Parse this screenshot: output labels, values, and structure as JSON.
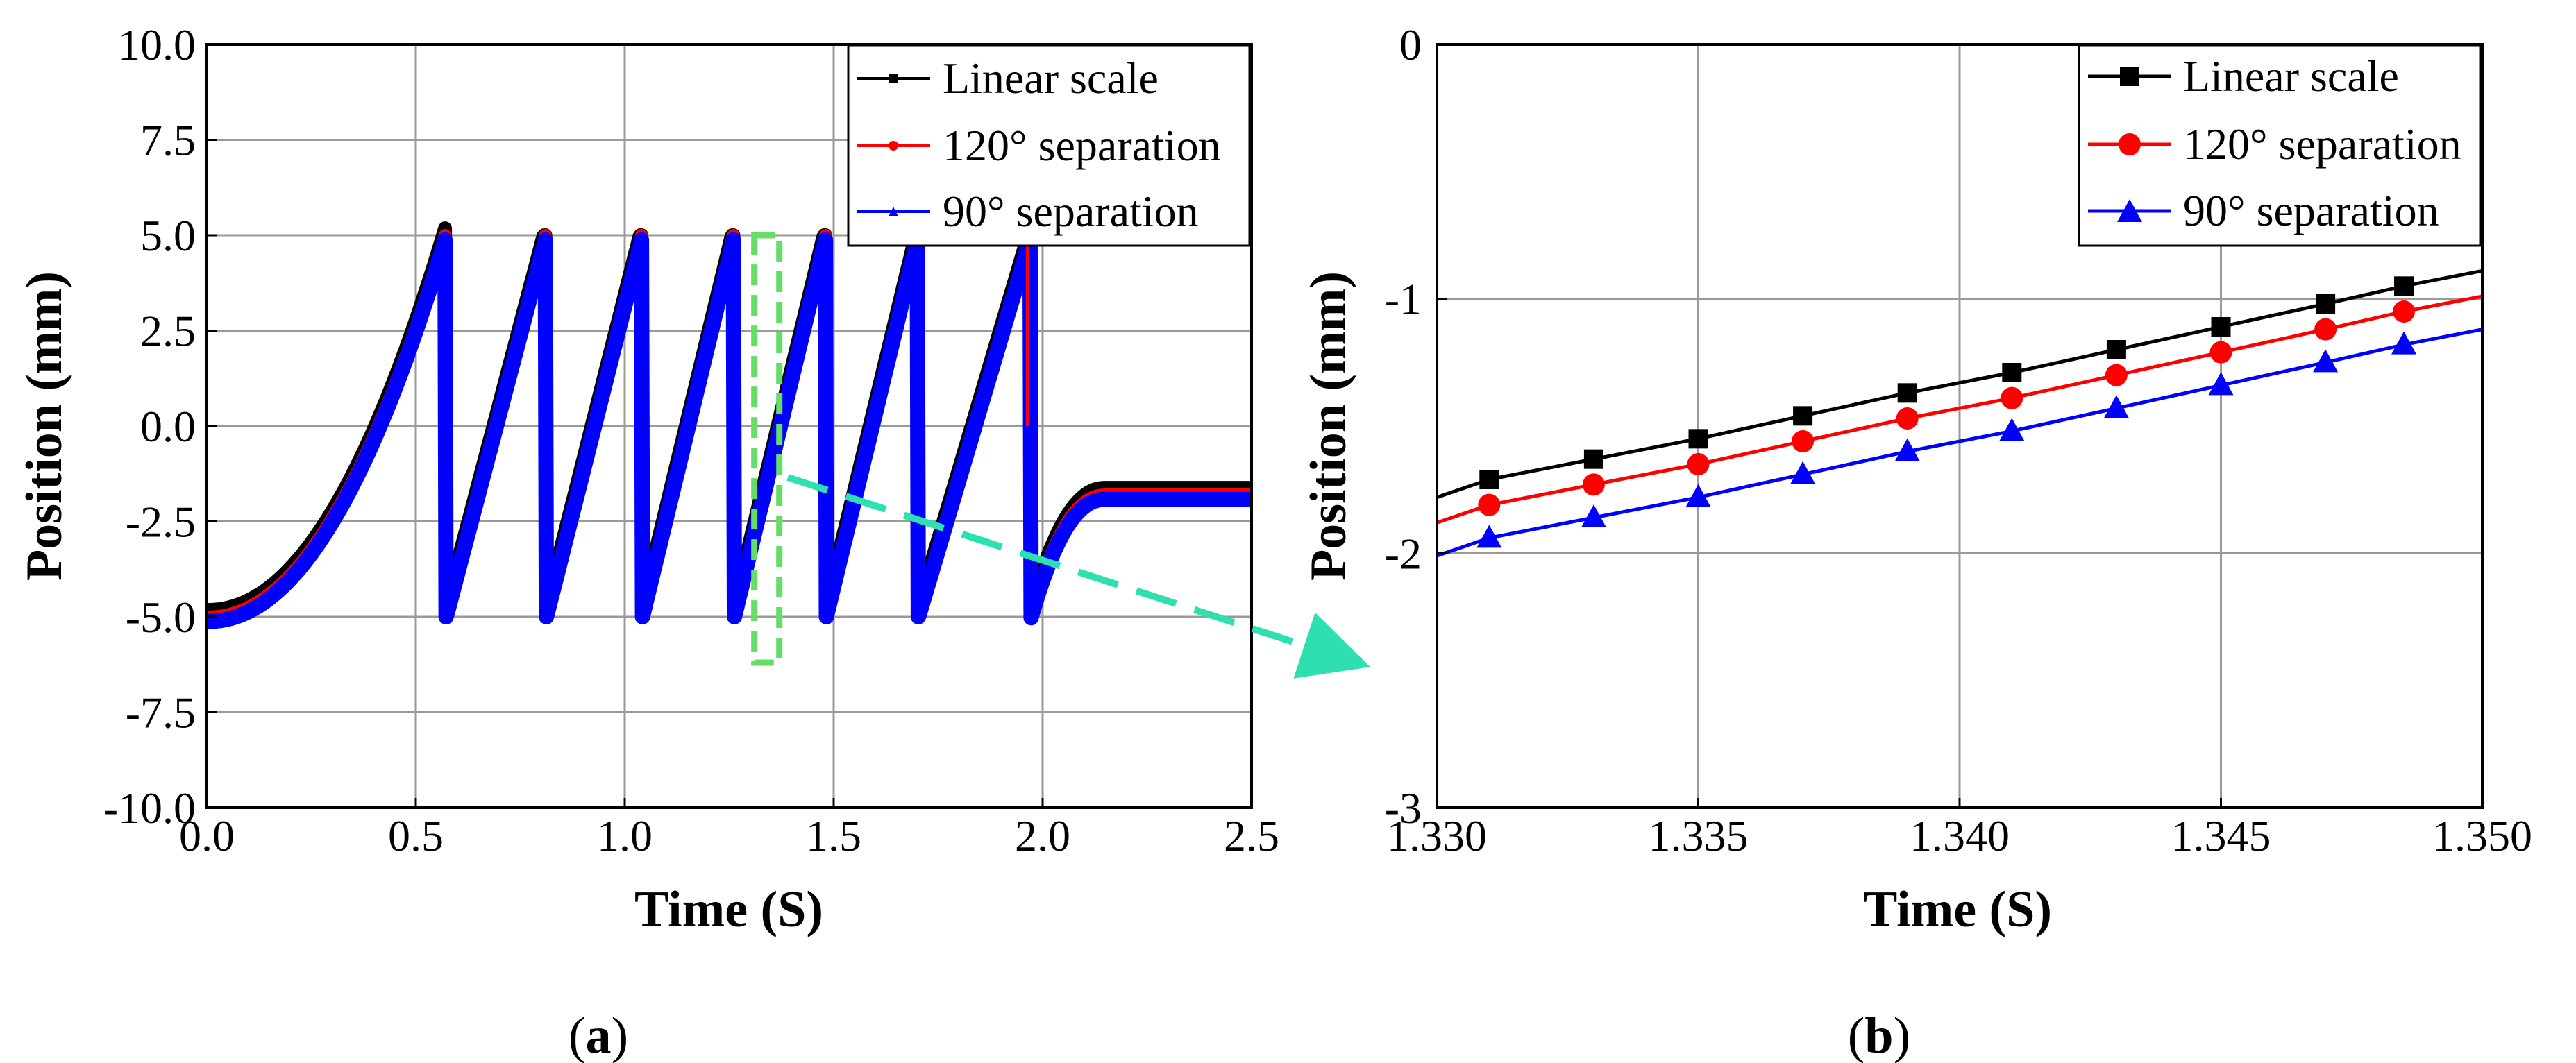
{
  "chart_data": [
    {
      "id": "a",
      "type": "line",
      "caption": "a",
      "xlabel": "Time (S)",
      "ylabel": "Position (mm)",
      "xlim": [
        0.0,
        2.5
      ],
      "ylim": [
        -10.0,
        10.0
      ],
      "x_ticks": [
        "0.0",
        "0.5",
        "1.0",
        "1.5",
        "2.0",
        "2.5"
      ],
      "x_tick_values": [
        0.0,
        0.5,
        1.0,
        1.5,
        2.0,
        2.5
      ],
      "y_ticks": [
        "10.0",
        "7.5",
        "5.0",
        "2.5",
        "0.0",
        "-2.5",
        "-5.0",
        "-7.5",
        "-10.0"
      ],
      "y_tick_values": [
        10.0,
        7.5,
        5.0,
        2.5,
        0.0,
        -2.5,
        -5.0,
        -7.5,
        -10.0
      ],
      "grid": true,
      "legend_position": "top-right",
      "series": [
        {
          "name": "Linear scale",
          "color": "#000000",
          "marker": "square",
          "offset": 0.18
        },
        {
          "name": "120° separation",
          "color": "#ff0000",
          "marker": "circle",
          "offset": 0.0
        },
        {
          "name": "90° separation",
          "color": "#0000ff",
          "marker": "triangle",
          "offset": -0.12
        }
      ],
      "motion_profile": {
        "start": -5.0,
        "accel_end_time": 0.57,
        "ramps": [
          {
            "start": 0.57,
            "end": 0.81
          },
          {
            "start": 0.81,
            "end": 1.04
          },
          {
            "start": 1.04,
            "end": 1.26
          },
          {
            "start": 1.26,
            "end": 1.48
          },
          {
            "start": 1.48,
            "end": 1.7
          },
          {
            "start": 1.7,
            "end": 1.97
          }
        ],
        "settle_start": 1.97,
        "settle_end": 2.15,
        "final_value": -1.8
      },
      "zoom_box": {
        "x": [
          1.33,
          1.35
        ],
        "y": [
          -6.2,
          5.0
        ],
        "color": "#66dd66"
      },
      "arrow_color": "#2ee0b0"
    },
    {
      "id": "b",
      "type": "line",
      "caption": "b",
      "xlabel": "Time (S)",
      "ylabel": "Position (mm)",
      "xlim": [
        1.33,
        1.35
      ],
      "ylim": [
        -3.0,
        0.0
      ],
      "x_ticks": [
        "1.330",
        "1.335",
        "1.340",
        "1.345",
        "1.350"
      ],
      "x_tick_values": [
        1.33,
        1.335,
        1.34,
        1.345,
        1.35
      ],
      "y_ticks": [
        "0",
        "-1",
        "-2",
        "-3"
      ],
      "y_tick_values": [
        0,
        -1,
        -2,
        -3
      ],
      "grid": true,
      "legend_position": "top-right",
      "series": [
        {
          "name": "Linear scale",
          "color": "#000000",
          "marker": "square",
          "x": [
            1.33,
            1.331,
            1.333,
            1.335,
            1.337,
            1.339,
            1.341,
            1.343,
            1.345,
            1.347,
            1.3485,
            1.35
          ],
          "y": [
            -1.78,
            -1.71,
            -1.63,
            -1.55,
            -1.46,
            -1.37,
            -1.29,
            -1.2,
            -1.11,
            -1.02,
            -0.95,
            -0.89
          ]
        },
        {
          "name": "120° separation",
          "color": "#ff0000",
          "marker": "circle",
          "x": [
            1.33,
            1.331,
            1.333,
            1.335,
            1.337,
            1.339,
            1.341,
            1.343,
            1.345,
            1.347,
            1.3485,
            1.35
          ],
          "y": [
            -1.88,
            -1.81,
            -1.73,
            -1.65,
            -1.56,
            -1.47,
            -1.39,
            -1.3,
            -1.21,
            -1.12,
            -1.05,
            -0.99
          ]
        },
        {
          "name": "90° separation",
          "color": "#0000ff",
          "marker": "triangle",
          "x": [
            1.33,
            1.331,
            1.333,
            1.335,
            1.337,
            1.339,
            1.341,
            1.343,
            1.345,
            1.347,
            1.3485,
            1.35
          ],
          "y": [
            -2.01,
            -1.94,
            -1.86,
            -1.78,
            -1.69,
            -1.6,
            -1.52,
            -1.43,
            -1.34,
            -1.25,
            -1.18,
            -1.12
          ]
        }
      ],
      "marker_x": [
        1.331,
        1.333,
        1.335,
        1.337,
        1.339,
        1.341,
        1.343,
        1.345,
        1.347,
        1.3485
      ]
    }
  ],
  "captions": {
    "a": "a",
    "b": "b"
  }
}
